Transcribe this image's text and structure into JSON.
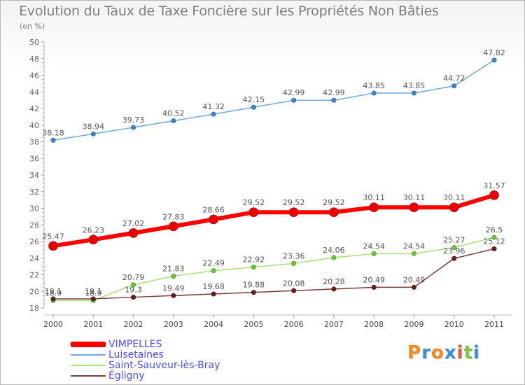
{
  "header": {
    "title": "Evolution du Taux de Taxe Foncière sur les Propriétés Non Bâties",
    "unit": "(en %)"
  },
  "brand": {
    "text": "Proxiti",
    "letters": [
      {
        "ch": "P",
        "color": "#f28a1b"
      },
      {
        "ch": "r",
        "color": "#3a8fd6"
      },
      {
        "ch": "o",
        "color": "#f28a1b"
      },
      {
        "ch": "x",
        "color": "#3a8fd6"
      },
      {
        "ch": "i",
        "color": "#e4572e"
      },
      {
        "ch": "t",
        "color": "#7cc243"
      },
      {
        "ch": "i",
        "color": "#3a8fd6"
      }
    ]
  },
  "chart_data": {
    "type": "line",
    "title": "Evolution du Taux de Taxe Foncière sur les Propriétés Non Bâties",
    "ylabel": "(en %)",
    "xlabel": "",
    "x": [
      "2000",
      "2001",
      "2002",
      "2003",
      "2004",
      "2005",
      "2006",
      "2007",
      "2008",
      "2009",
      "2010",
      "2011"
    ],
    "ylim": [
      18,
      50
    ],
    "yticks": [
      18,
      20,
      22,
      24,
      26,
      28,
      30,
      32,
      34,
      36,
      38,
      40,
      42,
      44,
      46,
      48,
      50
    ],
    "grid": false,
    "legend_position": "bottom-left",
    "series": [
      {
        "name": "VIMPELLES",
        "color": "#ff0000",
        "marker_color": "#e80000",
        "values": [
          25.47,
          26.23,
          27.02,
          27.83,
          28.66,
          29.52,
          29.52,
          29.52,
          30.11,
          30.11,
          30.11,
          31.57
        ],
        "labels": [
          "25.47",
          "26.23",
          "27.02",
          "27.83",
          "28.66",
          "29.52",
          "29.52",
          "29.52",
          "30.11",
          "30.11",
          "30.11",
          "31.57"
        ]
      },
      {
        "name": "Luisetaines",
        "color": "#6fa8dc",
        "marker_color": "#3d85c6",
        "values": [
          38.18,
          38.94,
          39.73,
          40.52,
          41.32,
          42.15,
          42.99,
          42.99,
          43.85,
          43.85,
          44.72,
          47.82
        ],
        "labels": [
          "38.18",
          "38.94",
          "39.73",
          "40.52",
          "41.32",
          "42.15",
          "42.99",
          "42.99",
          "43.85",
          "43.85",
          "44.72",
          "47.82"
        ]
      },
      {
        "name": "Saint-Sauveur-lès-Bray",
        "color": "#a8e07a",
        "marker_color": "#6cc43a",
        "values": [
          18.9,
          18.9,
          20.79,
          21.83,
          22.49,
          22.92,
          23.36,
          24.06,
          24.54,
          24.54,
          25.27,
          26.5
        ],
        "labels": [
          "18.9",
          "18.9",
          "20.79",
          "21.83",
          "22.49",
          "22.92",
          "23.36",
          "24.06",
          "24.54",
          "24.54",
          "25.27",
          "26.5"
        ]
      },
      {
        "name": "Égligny",
        "color": "#7a3b3b",
        "marker_color": "#6b1f1f",
        "values": [
          19.1,
          19.1,
          19.3,
          19.49,
          19.68,
          19.88,
          20.08,
          20.28,
          20.49,
          20.49,
          23.96,
          25.12
        ],
        "labels": [
          "19.1",
          "19.1",
          "19.3",
          "19.49",
          "19.68",
          "19.88",
          "20.08",
          "20.28",
          "20.49",
          "20.49",
          "23.96",
          "25.12"
        ]
      }
    ]
  }
}
